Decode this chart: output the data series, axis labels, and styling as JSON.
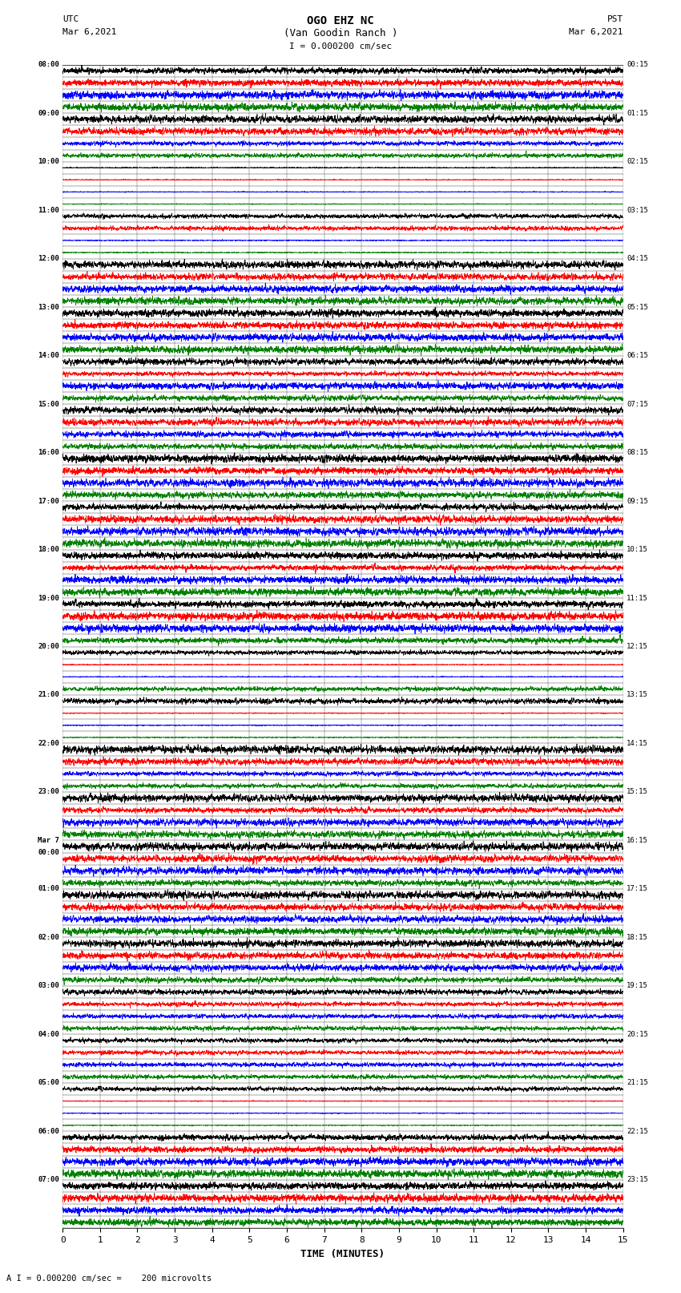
{
  "title_line1": "OGO EHZ NC",
  "title_line2": "(Van Goodin Ranch )",
  "title_line3": "I = 0.000200 cm/sec",
  "left_header_line1": "UTC",
  "left_header_line2": "Mar 6,2021",
  "right_header_line1": "PST",
  "right_header_line2": "Mar 6,2021",
  "xlabel": "TIME (MINUTES)",
  "footer": "A I = 0.000200 cm/sec =    200 microvolts",
  "xlim": [
    0,
    15
  ],
  "xticks": [
    0,
    1,
    2,
    3,
    4,
    5,
    6,
    7,
    8,
    9,
    10,
    11,
    12,
    13,
    14,
    15
  ],
  "colors": {
    "black": "#000000",
    "red": "#ff0000",
    "blue": "#0000ff",
    "green": "#008000",
    "background": "#ffffff"
  },
  "left_times_utc": [
    "08:00",
    "",
    "",
    "",
    "09:00",
    "",
    "",
    "",
    "10:00",
    "",
    "",
    "",
    "11:00",
    "",
    "",
    "",
    "12:00",
    "",
    "",
    "",
    "13:00",
    "",
    "",
    "",
    "14:00",
    "",
    "",
    "",
    "15:00",
    "",
    "",
    "",
    "16:00",
    "",
    "",
    "",
    "17:00",
    "",
    "",
    "",
    "18:00",
    "",
    "",
    "",
    "19:00",
    "",
    "",
    "",
    "20:00",
    "",
    "",
    "",
    "21:00",
    "",
    "",
    "",
    "22:00",
    "",
    "",
    "",
    "23:00",
    "",
    "",
    "",
    "Mar 7",
    "00:00",
    "",
    "",
    "01:00",
    "",
    "",
    "",
    "02:00",
    "",
    "",
    "",
    "03:00",
    "",
    "",
    "",
    "04:00",
    "",
    "",
    "",
    "05:00",
    "",
    "",
    "",
    "06:00",
    "",
    "",
    "",
    "07:00",
    "",
    "",
    ""
  ],
  "right_times_pst": [
    "00:15",
    "",
    "",
    "",
    "01:15",
    "",
    "",
    "",
    "02:15",
    "",
    "",
    "",
    "03:15",
    "",
    "",
    "",
    "04:15",
    "",
    "",
    "",
    "05:15",
    "",
    "",
    "",
    "06:15",
    "",
    "",
    "",
    "07:15",
    "",
    "",
    "",
    "08:15",
    "",
    "",
    "",
    "09:15",
    "",
    "",
    "",
    "10:15",
    "",
    "",
    "",
    "11:15",
    "",
    "",
    "",
    "12:15",
    "",
    "",
    "",
    "13:15",
    "",
    "",
    "",
    "14:15",
    "",
    "",
    "",
    "15:15",
    "",
    "",
    "",
    "16:15",
    "",
    "",
    "",
    "17:15",
    "",
    "",
    "",
    "18:15",
    "",
    "",
    "",
    "19:15",
    "",
    "",
    "",
    "20:15",
    "",
    "",
    "",
    "21:15",
    "",
    "",
    "",
    "22:15",
    "",
    "",
    "",
    "23:15",
    "",
    "",
    ""
  ],
  "n_rows": 96,
  "n_points": 3600,
  "seed": 42,
  "row_amplitudes": [
    2.5,
    3.0,
    0.3,
    0.6,
    0.25,
    0.15,
    0.08,
    0.08,
    0.06,
    0.06,
    0.06,
    0.06,
    0.08,
    0.08,
    0.06,
    0.06,
    0.18,
    0.12,
    0.35,
    0.2,
    0.45,
    0.4,
    0.35,
    0.3,
    0.12,
    0.08,
    0.4,
    0.1,
    0.12,
    0.2,
    0.15,
    0.1,
    0.55,
    0.45,
    0.25,
    0.2,
    0.2,
    0.2,
    0.2,
    0.2,
    0.8,
    2.0,
    0.8,
    0.6,
    2.5,
    3.0,
    2.8,
    2.5,
    0.08,
    0.06,
    0.06,
    0.08,
    0.1,
    0.06,
    0.06,
    0.06,
    0.2,
    0.12,
    0.08,
    0.08,
    0.15,
    0.1,
    0.25,
    0.2,
    0.15,
    0.15,
    0.15,
    0.15,
    0.15,
    0.2,
    0.25,
    0.3,
    0.2,
    0.15,
    0.12,
    0.1,
    0.1,
    0.08,
    0.08,
    0.08,
    0.08,
    0.08,
    0.08,
    0.08,
    0.08,
    0.06,
    0.06,
    0.06,
    1.5,
    2.0,
    1.8,
    1.5,
    2.0,
    2.2,
    2.5,
    2.8
  ],
  "row_colors": [
    "black",
    "red",
    "blue",
    "green",
    "black",
    "red",
    "blue",
    "green",
    "black",
    "red",
    "blue",
    "green",
    "black",
    "red",
    "blue",
    "green",
    "black",
    "red",
    "blue",
    "green",
    "black",
    "red",
    "blue",
    "green",
    "black",
    "red",
    "blue",
    "green",
    "black",
    "red",
    "blue",
    "green",
    "black",
    "red",
    "blue",
    "green",
    "black",
    "red",
    "blue",
    "green",
    "black",
    "red",
    "blue",
    "green",
    "black",
    "red",
    "blue",
    "green",
    "black",
    "red",
    "blue",
    "green",
    "black",
    "red",
    "blue",
    "green",
    "black",
    "red",
    "blue",
    "green",
    "black",
    "red",
    "blue",
    "green",
    "black",
    "red",
    "blue",
    "green",
    "black",
    "red",
    "blue",
    "green",
    "black",
    "red",
    "blue",
    "green",
    "black",
    "red",
    "blue",
    "green",
    "black",
    "red",
    "blue",
    "green",
    "black",
    "red",
    "blue",
    "green",
    "black",
    "red",
    "blue",
    "green",
    "black",
    "red",
    "blue",
    "green"
  ]
}
